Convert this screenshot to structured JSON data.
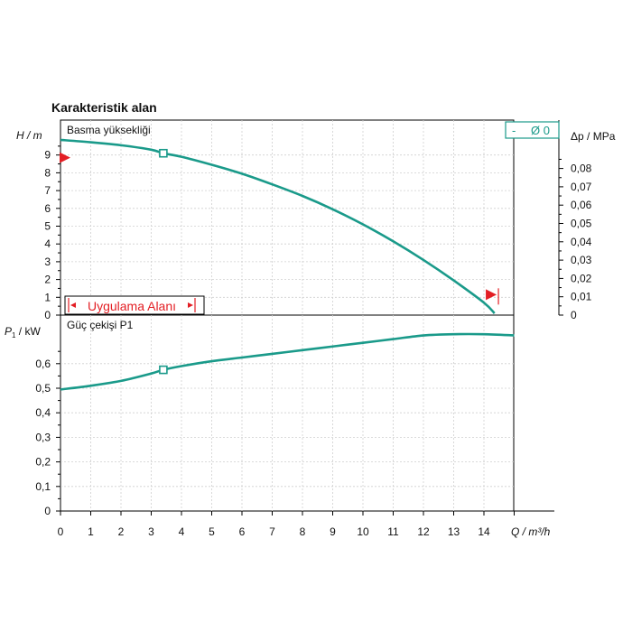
{
  "chart_data": {
    "type": "line",
    "title": "Karakteristik alan",
    "accent_color": "#1a9a8a",
    "marker_color": "#e31e24",
    "top_panel": {
      "label": "Basma yüksekliği",
      "ylabel": "H / m",
      "ylim": [
        0,
        10
      ],
      "yticks": [
        "0",
        "1",
        "2",
        "3",
        "4",
        "5",
        "6",
        "7",
        "8",
        "9"
      ],
      "right_axis_label": "Δp / MPa",
      "right_ticks": [
        "0",
        "0,01",
        "0,02",
        "0,03",
        "0,04",
        "0,05",
        "0,06",
        "0,07",
        "0,08"
      ],
      "legend_dash": "-",
      "legend_label": "Ø 0",
      "application_area_label": "Uygulama Alanı",
      "series": [
        {
          "name": "Ø 0",
          "x": [
            0,
            1,
            2,
            3,
            3.4,
            4,
            5,
            6,
            7,
            8,
            9,
            10,
            11,
            12,
            13,
            14,
            14.35
          ],
          "y": [
            9.85,
            9.72,
            9.55,
            9.3,
            9.1,
            8.9,
            8.45,
            7.95,
            7.35,
            6.7,
            5.95,
            5.1,
            4.15,
            3.1,
            1.95,
            0.7,
            0.1
          ]
        }
      ],
      "operating_point": {
        "x": 3.4,
        "y": 9.1
      },
      "left_marker_y": 8.85,
      "right_marker": {
        "x": 14.3,
        "y": 1.1
      }
    },
    "bottom_panel": {
      "label": "Güç çekişi P1",
      "ylabel_main": "P",
      "ylabel_sub": "1",
      "ylabel_unit": " / kW",
      "ylim": [
        0,
        0.75
      ],
      "yticks": [
        {
          "value": 0,
          "label": "0"
        },
        {
          "value": 0.1,
          "label": "0,1"
        },
        {
          "value": 0.2,
          "label": "0,2"
        },
        {
          "value": 0.3,
          "label": "0,3"
        },
        {
          "value": 0.4,
          "label": "0,4"
        },
        {
          "value": 0.5,
          "label": "0,5"
        },
        {
          "value": 0.6,
          "label": "0,6"
        }
      ],
      "series": [
        {
          "name": "Ø 0",
          "x": [
            0,
            1,
            2,
            3,
            3.4,
            4,
            5,
            6,
            7,
            8,
            9,
            10,
            11,
            12,
            13,
            14,
            15
          ],
          "y": [
            0.495,
            0.51,
            0.53,
            0.56,
            0.575,
            0.59,
            0.61,
            0.625,
            0.64,
            0.655,
            0.67,
            0.685,
            0.7,
            0.715,
            0.72,
            0.72,
            0.715
          ]
        }
      ],
      "operating_point": {
        "x": 3.4,
        "y": 0.575
      }
    },
    "x_axis": {
      "label": "Q / m³/h",
      "xlim": [
        0,
        15
      ],
      "ticks": [
        "0",
        "1",
        "2",
        "3",
        "4",
        "5",
        "6",
        "7",
        "8",
        "9",
        "10",
        "11",
        "12",
        "13",
        "14"
      ]
    }
  }
}
